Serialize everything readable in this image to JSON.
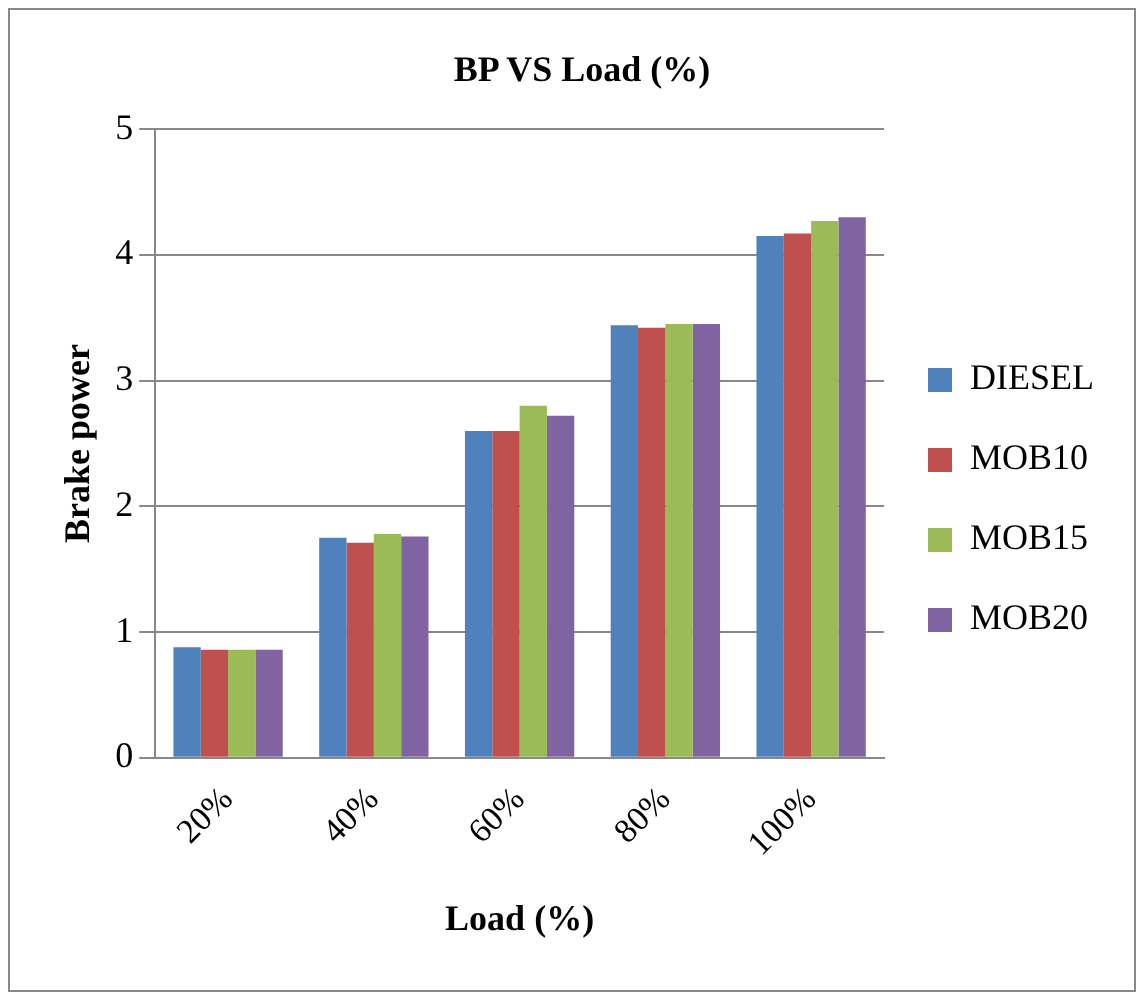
{
  "chart_data": {
    "type": "bar",
    "title": "BP VS Load (%)",
    "xlabel": "Load (%)",
    "ylabel": "Brake power",
    "categories": [
      "20%",
      "40%",
      "60%",
      "80%",
      "100%"
    ],
    "series": [
      {
        "name": "DIESEL",
        "color": "#4f81bd",
        "values": [
          0.88,
          1.75,
          2.6,
          3.44,
          4.15
        ]
      },
      {
        "name": "MOB10",
        "color": "#c0504d",
        "values": [
          0.86,
          1.71,
          2.6,
          3.42,
          4.17
        ]
      },
      {
        "name": "MOB15",
        "color": "#9bbb59",
        "values": [
          0.86,
          1.78,
          2.8,
          3.45,
          4.27
        ]
      },
      {
        "name": "MOB20",
        "color": "#8064a2",
        "values": [
          0.86,
          1.76,
          2.72,
          3.45,
          4.3
        ]
      }
    ],
    "ylim": [
      0,
      5
    ],
    "yticks": [
      0,
      1,
      2,
      3,
      4,
      5
    ],
    "grid": "y",
    "legend": "right"
  }
}
